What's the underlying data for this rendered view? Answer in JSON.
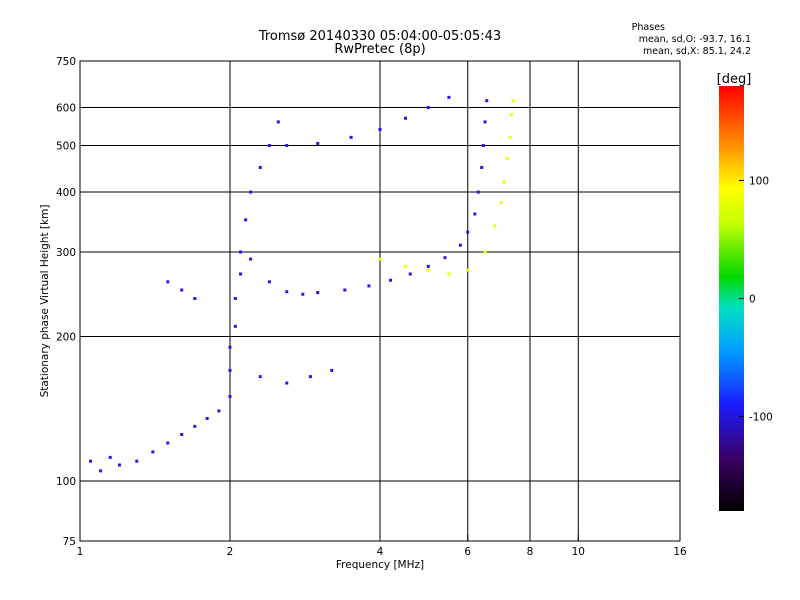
{
  "header": {
    "title": "Tromsø 20140330 05:04:00-05:05:43",
    "subtitle": "RwPretec (8p)",
    "phases_title": "Phases",
    "phases_line1": "mean, sd,O: -93.7, 16.1",
    "phases_line2": "mean, sd,X:  85.1, 24.2"
  },
  "colorbar": {
    "label": "[deg]",
    "tick_labels": [
      "100",
      "0",
      "-100"
    ],
    "tick_values": [
      100,
      0,
      -100
    ],
    "range": [
      -180,
      180
    ]
  },
  "chart_data": {
    "type": "scatter",
    "xlabel": "Frequency [MHz]",
    "ylabel": "Stationary phase Virtual Height [km]",
    "x_scale": "log",
    "y_scale": "log",
    "xlim": [
      1,
      16
    ],
    "ylim": [
      75,
      750
    ],
    "x_ticks": [
      1,
      2,
      4,
      6,
      8,
      10,
      16
    ],
    "x_tick_labels": [
      "1",
      "2",
      "4",
      "6",
      "8",
      "10",
      "16"
    ],
    "y_ticks": [
      75,
      100,
      200,
      300,
      400,
      500,
      600,
      750
    ],
    "y_tick_labels": [
      "75",
      "100",
      "200",
      "300",
      "400",
      "500",
      "600",
      "750"
    ],
    "x_grid": [
      2,
      4,
      6,
      8,
      10
    ],
    "y_grid": [
      100,
      200,
      300,
      400,
      500,
      600
    ],
    "color_variable": "phase [deg]",
    "series": [
      {
        "name": "O",
        "mean_phase": -93.7,
        "points": [
          [
            1.05,
            110
          ],
          [
            1.1,
            105
          ],
          [
            1.15,
            112
          ],
          [
            1.2,
            108
          ],
          [
            1.3,
            110
          ],
          [
            1.4,
            115
          ],
          [
            1.5,
            120
          ],
          [
            1.6,
            125
          ],
          [
            1.7,
            130
          ],
          [
            1.8,
            135
          ],
          [
            1.9,
            140
          ],
          [
            2.0,
            150
          ],
          [
            2.0,
            170
          ],
          [
            2.0,
            190
          ],
          [
            2.05,
            210
          ],
          [
            2.05,
            240
          ],
          [
            2.1,
            270
          ],
          [
            2.1,
            300
          ],
          [
            2.15,
            350
          ],
          [
            2.2,
            400
          ],
          [
            2.3,
            450
          ],
          [
            2.4,
            500
          ],
          [
            2.5,
            560
          ],
          [
            1.5,
            260
          ],
          [
            1.6,
            250
          ],
          [
            1.7,
            240
          ],
          [
            2.2,
            290
          ],
          [
            2.4,
            260
          ],
          [
            2.6,
            248
          ],
          [
            2.8,
            245
          ],
          [
            3.0,
            247
          ],
          [
            3.4,
            250
          ],
          [
            3.8,
            255
          ],
          [
            4.2,
            262
          ],
          [
            4.6,
            270
          ],
          [
            5.0,
            280
          ],
          [
            5.4,
            292
          ],
          [
            5.8,
            310
          ],
          [
            6.0,
            330
          ],
          [
            6.2,
            360
          ],
          [
            6.3,
            400
          ],
          [
            6.4,
            450
          ],
          [
            6.45,
            500
          ],
          [
            6.5,
            560
          ],
          [
            6.55,
            620
          ],
          [
            2.6,
            500
          ],
          [
            3.0,
            505
          ],
          [
            3.5,
            520
          ],
          [
            4.0,
            540
          ],
          [
            4.5,
            570
          ],
          [
            5.0,
            600
          ],
          [
            5.5,
            630
          ],
          [
            2.3,
            165
          ],
          [
            2.6,
            160
          ],
          [
            2.9,
            165
          ],
          [
            3.2,
            170
          ]
        ]
      },
      {
        "name": "X",
        "mean_phase": 85.1,
        "points": [
          [
            4.0,
            290
          ],
          [
            4.5,
            280
          ],
          [
            5.0,
            275
          ],
          [
            5.5,
            270
          ],
          [
            6.0,
            275
          ],
          [
            6.5,
            300
          ],
          [
            6.8,
            340
          ],
          [
            7.0,
            380
          ],
          [
            7.1,
            420
          ],
          [
            7.2,
            470
          ],
          [
            7.3,
            520
          ],
          [
            7.35,
            580
          ],
          [
            7.4,
            620
          ]
        ]
      }
    ]
  }
}
